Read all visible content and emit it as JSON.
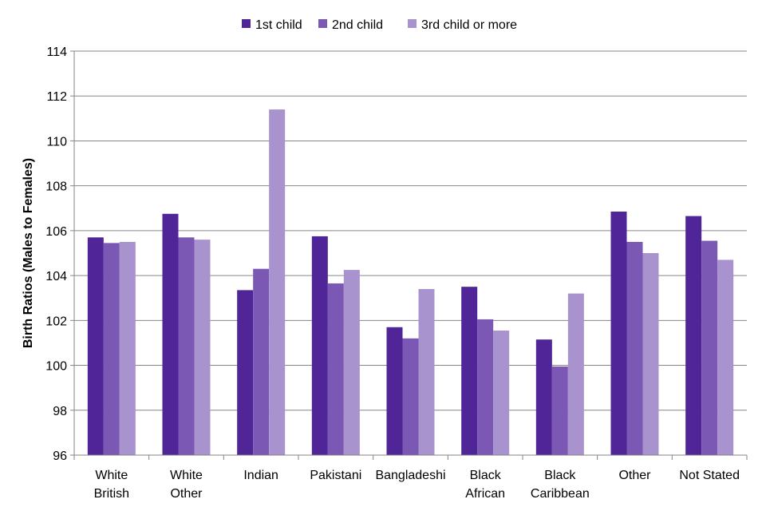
{
  "chart_data": {
    "type": "bar",
    "title": "",
    "xlabel": "",
    "ylabel": "Birth Ratios (Males to Females)",
    "ylim": [
      96,
      114
    ],
    "ytick_step": 2,
    "yticks": [
      "96",
      "98",
      "100",
      "102",
      "104",
      "106",
      "108",
      "110",
      "112",
      "114"
    ],
    "grid": true,
    "legend_position": "top-center",
    "categories": [
      [
        "White",
        "British"
      ],
      [
        "White",
        "Other"
      ],
      [
        "Indian"
      ],
      [
        "Pakistani"
      ],
      [
        "Bangladeshi"
      ],
      [
        "Black",
        "African"
      ],
      [
        "Black",
        "Caribbean"
      ],
      [
        "Other"
      ],
      [
        "Not Stated"
      ]
    ],
    "series": [
      {
        "name": "1st child",
        "color": "#4f2597",
        "values": [
          105.7,
          106.75,
          103.35,
          105.75,
          101.7,
          103.5,
          101.15,
          106.85,
          106.65
        ]
      },
      {
        "name": "2nd child",
        "color": "#7b58b4",
        "values": [
          105.45,
          105.7,
          104.3,
          103.65,
          101.2,
          102.05,
          99.95,
          105.5,
          105.55
        ]
      },
      {
        "name": "3rd child or more",
        "color": "#a893cf",
        "values": [
          105.5,
          105.6,
          111.4,
          104.25,
          103.4,
          101.55,
          103.2,
          105.0,
          104.7
        ]
      }
    ]
  }
}
